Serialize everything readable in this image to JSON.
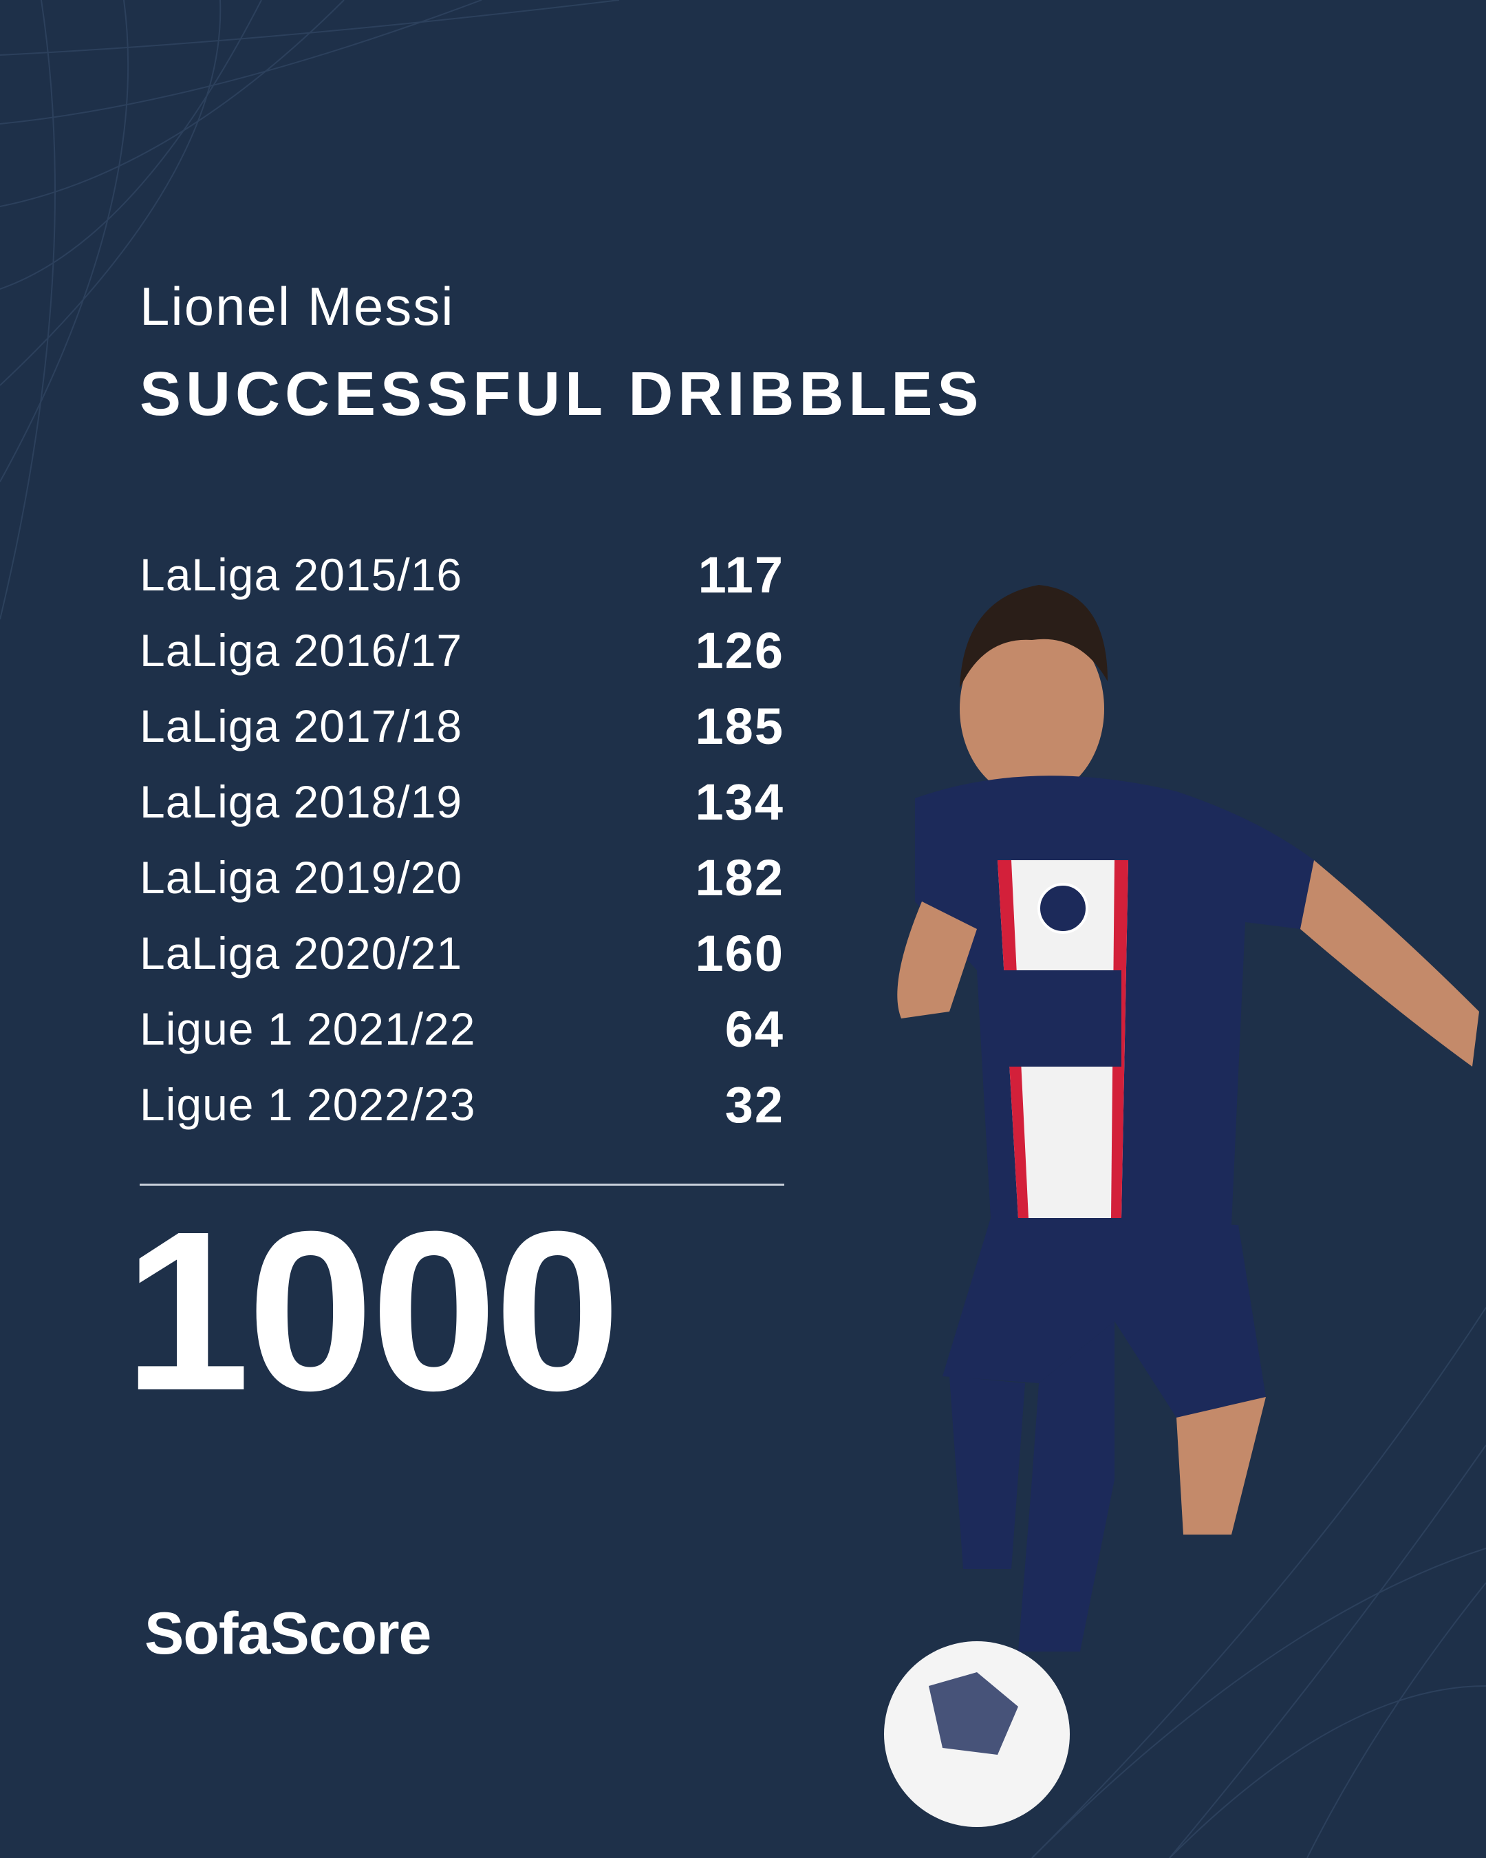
{
  "header": {
    "player_name": "Lionel Messi",
    "stat_title": "SUCCESSFUL DRIBBLES"
  },
  "rows": [
    {
      "label": "LaLiga 2015/16",
      "value": "117"
    },
    {
      "label": "LaLiga 2016/17",
      "value": "126"
    },
    {
      "label": "LaLiga 2017/18",
      "value": "185"
    },
    {
      "label": "LaLiga 2018/19",
      "value": "134"
    },
    {
      "label": "LaLiga 2019/20",
      "value": "182"
    },
    {
      "label": "LaLiga 2020/21",
      "value": "160"
    },
    {
      "label": "Ligue 1 2021/22",
      "value": "64"
    },
    {
      "label": "Ligue 1 2022/23",
      "value": "32"
    }
  ],
  "total": "1000",
  "brand": {
    "logo_text": "SofaScore"
  },
  "colors": {
    "background": "#1e3049",
    "text": "#ffffff",
    "jersey": "#1c2a5a",
    "stripe_red": "#d3203a"
  }
}
